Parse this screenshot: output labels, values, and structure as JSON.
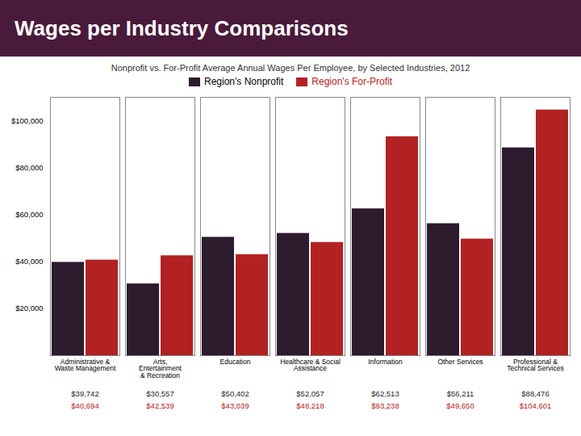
{
  "chart_data": {
    "type": "bar",
    "title": "Wages per Industry Comparisons",
    "subtitle": "Nonprofit vs. For-Profit Average Annual Wages Per Employee, by Selected Industries, 2012",
    "categories": [
      "Administrative &\nWaste Management",
      "Arts,\nEntertainment\n& Recreation",
      "Education",
      "Healthcare & Social\nAssistance",
      "Information",
      "Other Services",
      "Professional &\nTechnical Services"
    ],
    "series": [
      {
        "name": "Region's Nonprofit",
        "color": "#2d1b2e",
        "values": [
          39742,
          30557,
          50402,
          52057,
          62513,
          56211,
          88476
        ],
        "value_labels": [
          "$39,742",
          "$30,557",
          "$50,402",
          "$52,057",
          "$62,513",
          "$56,211",
          "$88,476"
        ]
      },
      {
        "name": "Region's For-Profit",
        "color": "#b22222",
        "values": [
          40694,
          42539,
          43039,
          48218,
          93238,
          49650,
          104601
        ],
        "value_labels": [
          "$40,694",
          "$42,539",
          "$43,039",
          "$48,218",
          "$93,238",
          "$49,650",
          "$104,601"
        ]
      }
    ],
    "ylim": [
      0,
      110000
    ],
    "yticks": [
      {
        "value": 20000,
        "label": "$20,000"
      },
      {
        "value": 40000,
        "label": "$40,000"
      },
      {
        "value": 60000,
        "label": "$60,000"
      },
      {
        "value": 80000,
        "label": "$80,000"
      },
      {
        "value": 100000,
        "label": "$100,000"
      }
    ],
    "grid": false,
    "legend": "top",
    "data_labels": true
  }
}
